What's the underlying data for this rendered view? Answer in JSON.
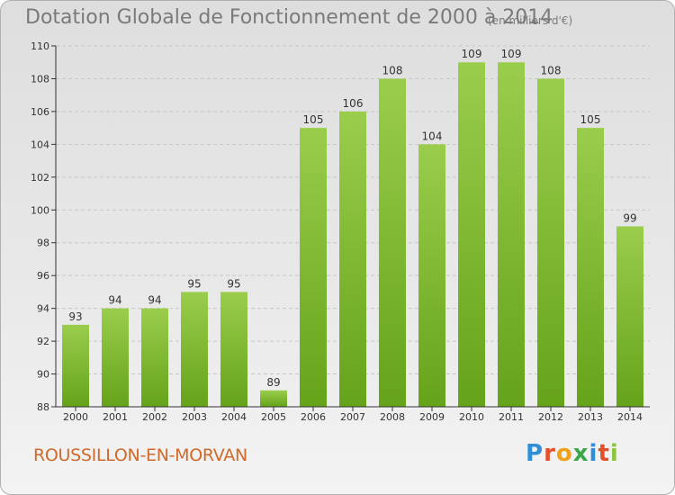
{
  "header": {
    "title": "Dotation Globale de Fonctionnement de 2000 à 2014",
    "unit": "(en milliers d'€)"
  },
  "footer": {
    "commune": "ROUSSILLON-EN-MORVAN",
    "logo_letters": [
      "P",
      "r",
      "o",
      "x",
      "i",
      "t",
      "i"
    ],
    "logo_colors": [
      "#2e8fd6",
      "#e2502a",
      "#f0a11a",
      "#3aa84a",
      "#2e8fd6",
      "#e2502a",
      "#8cc63f"
    ]
  },
  "colors": {
    "bar_light": "#9acd4c",
    "bar_dark": "#65a31a",
    "axis": "#333333",
    "grid": "#c8c8c8"
  },
  "chart_data": {
    "type": "bar",
    "categories": [
      "2000",
      "2001",
      "2002",
      "2003",
      "2004",
      "2005",
      "2006",
      "2007",
      "2008",
      "2009",
      "2010",
      "2011",
      "2012",
      "2013",
      "2014"
    ],
    "values": [
      93,
      94,
      94,
      95,
      95,
      89,
      105,
      106,
      108,
      104,
      109,
      109,
      108,
      105,
      99
    ],
    "ylim": [
      88,
      110
    ],
    "yticks": [
      88,
      90,
      92,
      94,
      96,
      98,
      100,
      102,
      104,
      106,
      108,
      110
    ],
    "grid": true
  }
}
